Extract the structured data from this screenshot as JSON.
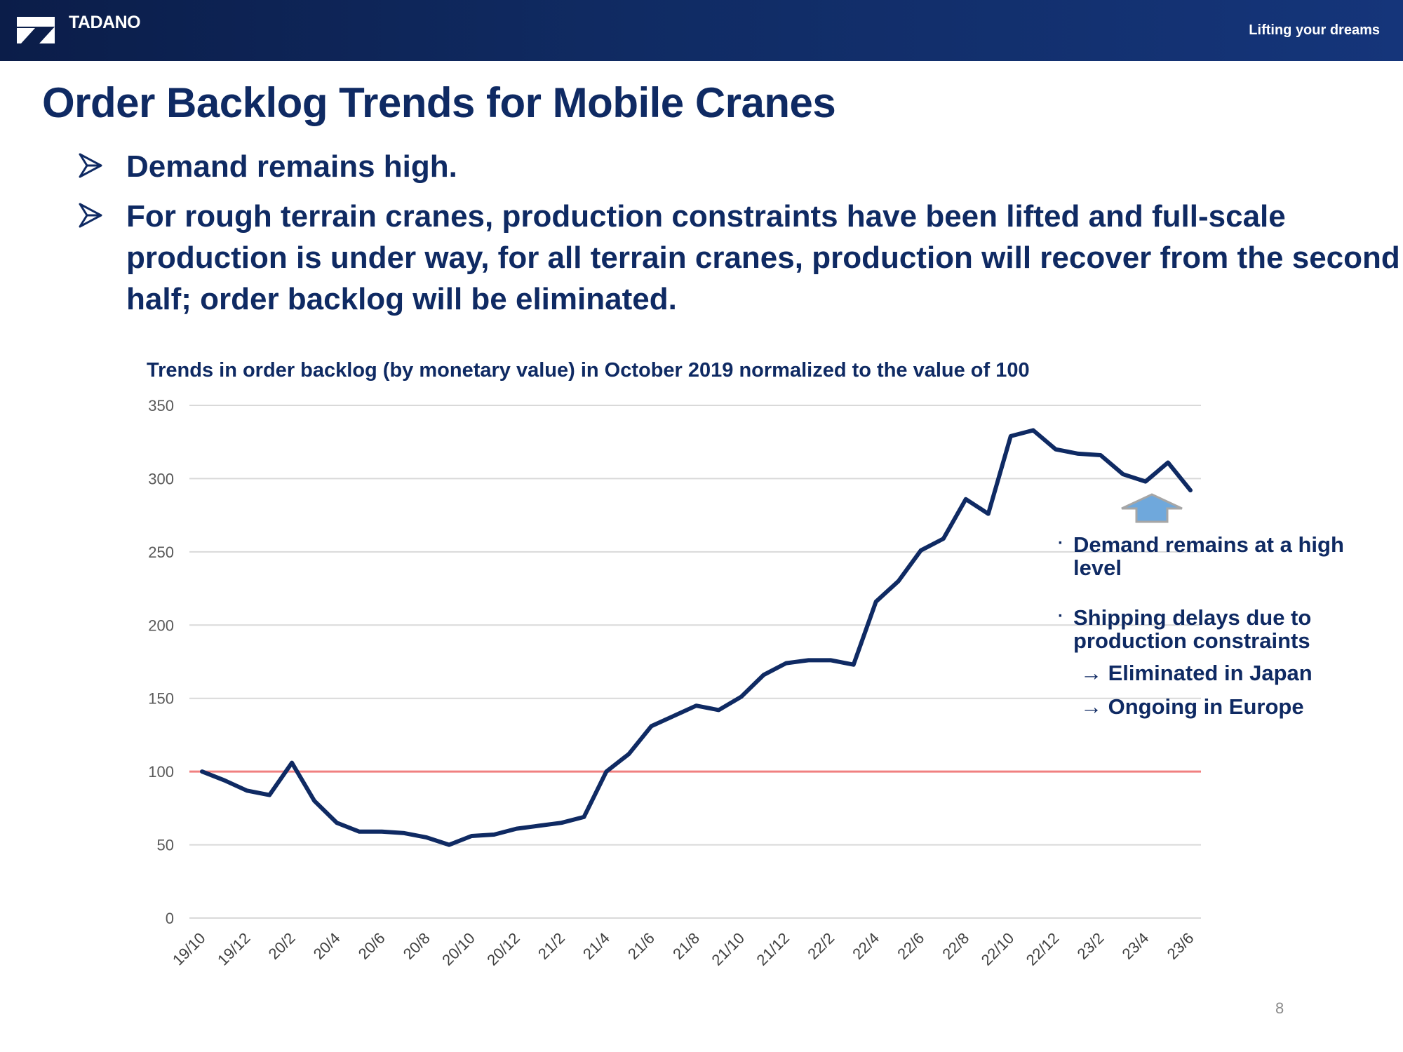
{
  "header": {
    "brand": "TADANO",
    "tagline": "Lifting your dreams",
    "logo_icon": "tadano-logo-icon"
  },
  "title": "Order Backlog Trends for Mobile Cranes",
  "bullets": [
    "Demand remains high.",
    "For rough terrain cranes, production constraints have been lifted and full-scale production is under way, for all terrain cranes, production will recover from the second half; order backlog will be eliminated."
  ],
  "chart_data": {
    "type": "line",
    "title": "Trends in order backlog (by monetary value) in October 2019 normalized to the value of 100",
    "xlabel": "",
    "ylabel": "",
    "ylim": [
      0,
      350
    ],
    "yticks": [
      0,
      50,
      100,
      150,
      200,
      250,
      300,
      350
    ],
    "grid": true,
    "x": [
      "19/10",
      "19/11",
      "19/12",
      "20/1",
      "20/2",
      "20/3",
      "20/4",
      "20/5",
      "20/6",
      "20/7",
      "20/8",
      "20/9",
      "20/10",
      "20/11",
      "20/12",
      "21/1",
      "21/2",
      "21/3",
      "21/4",
      "21/5",
      "21/6",
      "21/7",
      "21/8",
      "21/9",
      "21/10",
      "21/11",
      "21/12",
      "22/1",
      "22/2",
      "22/3",
      "22/4",
      "22/5",
      "22/6",
      "22/7",
      "22/8",
      "22/9",
      "22/10",
      "22/11",
      "22/12",
      "23/1",
      "23/2",
      "23/3",
      "23/4",
      "23/5",
      "23/6"
    ],
    "xtick_labels": [
      "19/10",
      "19/12",
      "20/2",
      "20/4",
      "20/6",
      "20/8",
      "20/10",
      "20/12",
      "21/2",
      "21/4",
      "21/6",
      "21/8",
      "21/10",
      "21/12",
      "22/2",
      "22/4",
      "22/6",
      "22/8",
      "22/10",
      "22/12",
      "23/2",
      "23/4",
      "23/6"
    ],
    "series": [
      {
        "values": [
          100,
          94,
          87,
          84,
          106,
          80,
          65,
          59,
          59,
          58,
          55,
          50,
          56,
          57,
          61,
          63,
          65,
          69,
          100,
          112,
          131,
          138,
          145,
          142,
          151,
          166,
          174,
          176,
          176,
          173,
          216,
          230,
          251,
          259,
          286,
          276,
          329,
          333,
          320,
          317,
          316,
          303,
          298,
          311,
          292
        ],
        "color": "#0f2a63"
      }
    ],
    "reference_line": {
      "value": 100,
      "color": "#f08080"
    },
    "annotations": {
      "arrow_color": "#6fa8dc",
      "items": [
        "Demand remains at a high level",
        "Shipping delays due to production constraints"
      ],
      "subitems": [
        "→ Eliminated in Japan",
        "→ Ongoing in Europe"
      ]
    }
  },
  "page_number": "8"
}
